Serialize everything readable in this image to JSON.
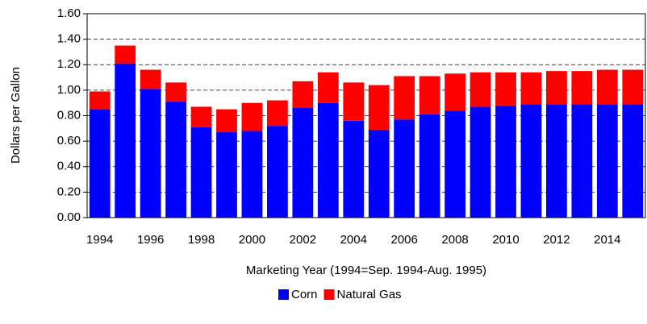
{
  "chart_data": {
    "type": "stacked-bar",
    "y_label": "Dollars per Gallon",
    "x_label": "Marketing Year (1994=Sep. 1994-Aug. 1995)",
    "categories": [
      "1994",
      null,
      "1996",
      null,
      "1998",
      null,
      "2000",
      null,
      "2002",
      null,
      "2004",
      null,
      "2006",
      null,
      "2008",
      null,
      "2010",
      null,
      "2012",
      null,
      "2014",
      null
    ],
    "series": [
      {
        "name": "Corn",
        "color": "#0000ff",
        "values": [
          0.85,
          1.21,
          1.01,
          0.91,
          0.71,
          0.67,
          0.68,
          0.72,
          0.86,
          0.9,
          0.76,
          0.69,
          0.77,
          0.81,
          0.84,
          0.87,
          0.88,
          0.89,
          0.89,
          0.89,
          0.89,
          0.89
        ]
      },
      {
        "name": "Natural Gas",
        "color": "#ff0000",
        "values": [
          0.14,
          0.14,
          0.15,
          0.15,
          0.16,
          0.18,
          0.22,
          0.2,
          0.21,
          0.24,
          0.3,
          0.35,
          0.34,
          0.3,
          0.29,
          0.27,
          0.26,
          0.25,
          0.26,
          0.26,
          0.27,
          0.27
        ]
      }
    ],
    "ylim": [
      0,
      1.6
    ],
    "yticks": [
      {
        "value": 0,
        "label": "0.00"
      },
      {
        "value": 0.2,
        "label": "0.20"
      },
      {
        "value": 0.4,
        "label": "0.40"
      },
      {
        "value": 0.6,
        "label": "0.60"
      },
      {
        "value": 0.8,
        "label": "0.80"
      },
      {
        "value": 1.0,
        "label": "1.00"
      },
      {
        "value": 1.2,
        "label": "1.20"
      },
      {
        "value": 1.4,
        "label": "1.40"
      },
      {
        "value": 1.6,
        "label": "1.60"
      }
    ],
    "grid": true,
    "legend": "bottom"
  }
}
